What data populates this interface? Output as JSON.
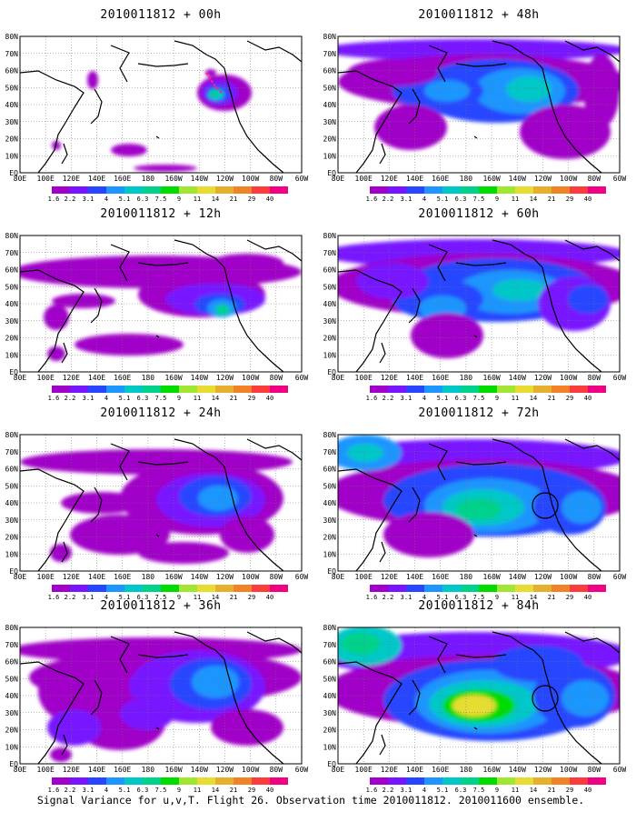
{
  "colorbar": {
    "colors": [
      "#a000c8",
      "#7814ff",
      "#2846ff",
      "#1e96ff",
      "#00c8c8",
      "#00d28c",
      "#00dc00",
      "#a0e632",
      "#e6dc32",
      "#e6af2d",
      "#f08228",
      "#fa3c3c",
      "#f00082"
    ],
    "labels": [
      "1.6",
      "2.2",
      "3.1",
      "4",
      "5.1",
      "6.3",
      "7.5",
      "9",
      "11",
      "14",
      "21",
      "29",
      "40"
    ]
  },
  "axes": {
    "x_ticks": [
      "80E",
      "100E",
      "120E",
      "140E",
      "160E",
      "180",
      "160W",
      "140W",
      "120W",
      "100W",
      "80W",
      "60W"
    ],
    "y_ticks": [
      "80N",
      "70N",
      "60N",
      "50N",
      "40N",
      "30N",
      "20N",
      "10N",
      "EQ"
    ]
  },
  "panels": [
    {
      "title": "2010011812 + 00h",
      "level": 0
    },
    {
      "title": "2010011812 + 12h",
      "level": 1
    },
    {
      "title": "2010011812 + 24h",
      "level": 2
    },
    {
      "title": "2010011812 + 36h",
      "level": 3
    },
    {
      "title": "2010011812 + 48h",
      "level": 4
    },
    {
      "title": "2010011812 + 60h",
      "level": 5
    },
    {
      "title": "2010011812 + 72h",
      "level": 6
    },
    {
      "title": "2010011812 + 84h",
      "level": 7
    }
  ],
  "caption": "Signal Variance for u,v,T. Flight 26. Observation time 2010011812. 2010011600 ensemble."
}
